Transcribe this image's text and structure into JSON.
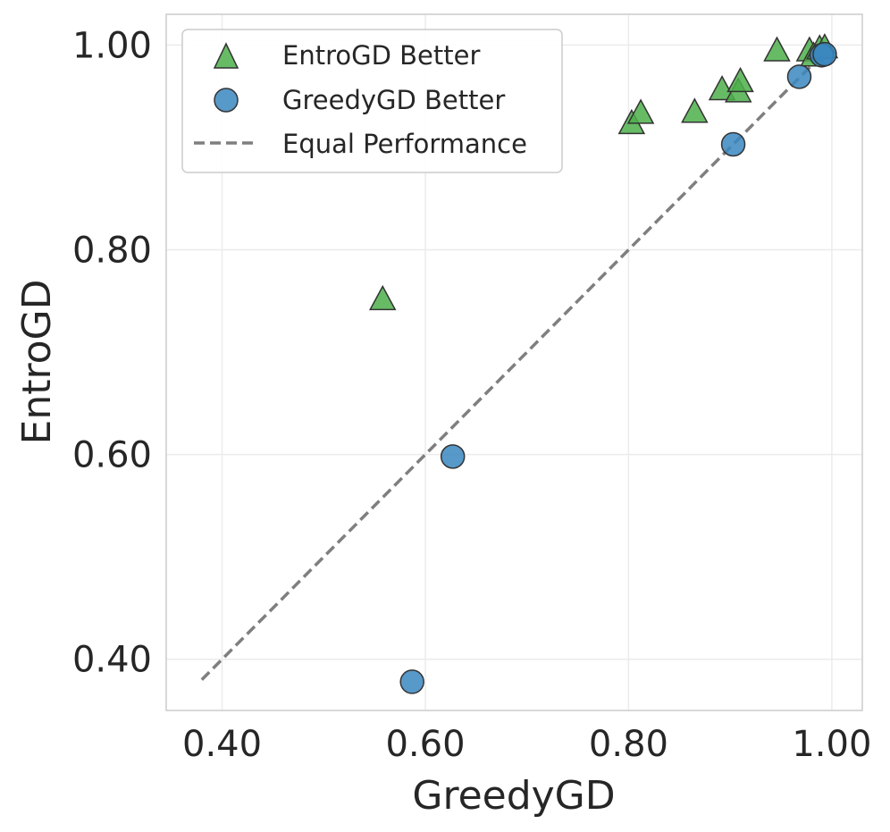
{
  "chart_data": {
    "type": "scatter",
    "title": "",
    "xlabel": "GreedyGD",
    "ylabel": "EntroGD",
    "xlim": [
      0.345,
      1.03
    ],
    "ylim": [
      0.35,
      1.03
    ],
    "xticks": [
      0.4,
      0.6,
      0.8,
      1.0
    ],
    "yticks": [
      0.4,
      0.6,
      0.8,
      1.0
    ],
    "xtick_labels": [
      "0.40",
      "0.60",
      "0.80",
      "1.00"
    ],
    "ytick_labels": [
      "0.40",
      "0.60",
      "0.80",
      "1.00"
    ],
    "grid": true,
    "legend_position": "top-left",
    "series": [
      {
        "name": "EntroGD Better",
        "marker": "triangle",
        "color": "#4daf4a",
        "points": [
          [
            0.558,
            0.752
          ],
          [
            0.803,
            0.924
          ],
          [
            0.812,
            0.934
          ],
          [
            0.865,
            0.935
          ],
          [
            0.892,
            0.957
          ],
          [
            0.908,
            0.955
          ],
          [
            0.91,
            0.965
          ],
          [
            0.946,
            0.995
          ],
          [
            0.978,
            0.995
          ],
          [
            0.982,
            0.99
          ],
          [
            0.988,
            0.997
          ],
          [
            0.993,
            0.998
          ]
        ]
      },
      {
        "name": "GreedyGD Better",
        "marker": "circle",
        "color": "#3a87c0",
        "points": [
          [
            0.587,
            0.378
          ],
          [
            0.627,
            0.598
          ],
          [
            0.903,
            0.903
          ],
          [
            0.968,
            0.969
          ],
          [
            0.99,
            0.99
          ],
          [
            0.993,
            0.991
          ]
        ]
      }
    ],
    "reference_line": {
      "name": "Equal Performance",
      "style": "dashed",
      "color": "#7f7f7f",
      "from": [
        0.38,
        0.38
      ],
      "to": [
        1.0,
        1.0
      ]
    }
  }
}
